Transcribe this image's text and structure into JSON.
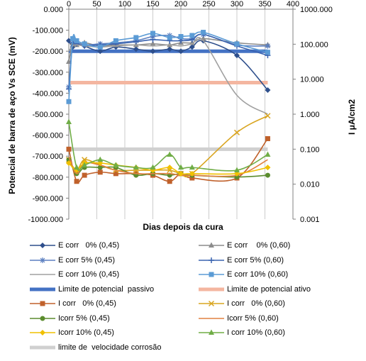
{
  "chart_data": {
    "type": "line",
    "xlabel": "Dias depois da cura",
    "ylabel_left": "Potencial de barra de aço Vs SCE (mV)",
    "ylabel_right": "I μA/cm2",
    "xlim": [
      0,
      400
    ],
    "ylim_left": [
      -1000,
      0
    ],
    "ylim_right_log": [
      0.001,
      1000
    ],
    "grid": "vertical gridlines",
    "legend_position": "bottom",
    "x_ticks": [
      "0",
      "50",
      "100",
      "150",
      "200",
      "250",
      "300",
      "350",
      "400"
    ],
    "y_ticks_left": [
      "0.000",
      "-100.000",
      "-200.000",
      "-300.000",
      "-400.000",
      "-500.000",
      "-600.000",
      "-700.000",
      "-800.000",
      "-900.000",
      "-1000.000"
    ],
    "y_ticks_right": [
      "1000.000",
      "100.000",
      "10.000",
      "1.000",
      "0.100",
      "0.010",
      "0.001"
    ],
    "series": [
      {
        "name": "E corr   0% (0,45)",
        "axis": "left",
        "color": "#2e4f8c",
        "marker": "diamond",
        "x": [
          0,
          7,
          14,
          28,
          56,
          84,
          120,
          150,
          180,
          200,
          220,
          240,
          300,
          355
        ],
        "y": [
          -150,
          -180,
          -160,
          -175,
          -200,
          -180,
          -190,
          -200,
          -190,
          -200,
          -180,
          -150,
          -220,
          -385
        ]
      },
      {
        "name": "E corr    0% (0,60)",
        "axis": "left",
        "color": "#8c8c8c",
        "marker": "triangle",
        "x": [
          0,
          7,
          14,
          28,
          56,
          84,
          120,
          150,
          180,
          200,
          220,
          240,
          300,
          355
        ],
        "y": [
          -250,
          -160,
          -170,
          -160,
          -175,
          -170,
          -170,
          -165,
          -170,
          -160,
          -160,
          -140,
          -160,
          -170
        ]
      },
      {
        "name": "E corr 5% (0,45)",
        "axis": "left",
        "color": "#5b7fc0",
        "marker": "asterisk",
        "x": [
          0,
          7,
          14,
          28,
          56,
          84,
          120,
          150,
          180,
          200,
          220,
          240,
          300,
          355
        ],
        "y": [
          -370,
          -150,
          -160,
          -170,
          -165,
          -160,
          -150,
          -130,
          -125,
          -140,
          -140,
          -120,
          -170,
          -175
        ]
      },
      {
        "name": "E corr 5% (0,60)",
        "axis": "left",
        "color": "#3a63b0",
        "marker": "plus",
        "x": [
          0,
          7,
          14,
          28,
          56,
          84,
          120,
          150,
          180,
          200,
          220,
          240,
          300,
          355
        ],
        "y": [
          -380,
          -160,
          -165,
          -175,
          -170,
          -165,
          -155,
          -145,
          -150,
          -150,
          -145,
          -120,
          -175,
          -220
        ]
      },
      {
        "name": "E corr 10% (0,45)",
        "axis": "left",
        "color": "#a0a0a0",
        "marker": "none",
        "x": [
          0,
          7,
          14,
          28,
          56,
          84,
          120,
          150,
          180,
          200,
          220,
          240,
          300,
          355
        ],
        "y": [
          -200,
          -175,
          -170,
          -175,
          -180,
          -175,
          -170,
          -175,
          -170,
          -175,
          -165,
          -150,
          -410,
          -500
        ]
      },
      {
        "name": "E corr 10% (0,60)",
        "axis": "left",
        "color": "#5b9bd5",
        "marker": "square",
        "x": [
          0,
          7,
          14,
          28,
          56,
          84,
          120,
          150,
          180,
          200,
          220,
          240,
          300,
          355
        ],
        "y": [
          -440,
          -140,
          -150,
          -165,
          -180,
          -150,
          -135,
          -115,
          -135,
          -130,
          -125,
          -110,
          -165,
          -205
        ]
      },
      {
        "name": "I corr   0% (0,45)",
        "axis": "right",
        "color": "#c0612b",
        "marker": "square",
        "x": [
          0,
          14,
          28,
          56,
          84,
          120,
          150,
          180,
          200,
          220,
          300,
          355
        ],
        "y": [
          0.1,
          0.012,
          0.018,
          0.022,
          0.02,
          0.02,
          0.018,
          0.012,
          0.02,
          0.015,
          0.015,
          0.2
        ]
      },
      {
        "name": "I corr   0% (0,60)",
        "axis": "right",
        "color": "#d9a520",
        "marker": "x",
        "x": [
          0,
          14,
          28,
          56,
          84,
          120,
          150,
          180,
          200,
          220,
          300,
          355
        ],
        "y": [
          0.05,
          0.025,
          0.05,
          0.035,
          0.025,
          0.025,
          0.025,
          0.025,
          0.02,
          0.02,
          0.3,
          0.9
        ]
      },
      {
        "name": "Icorr 5% (0,45)",
        "axis": "right",
        "color": "#5b8c2e",
        "marker": "circle",
        "x": [
          0,
          14,
          28,
          56,
          84,
          120,
          150,
          180,
          200,
          220,
          300,
          355
        ],
        "y": [
          0.05,
          0.02,
          0.03,
          0.03,
          0.03,
          0.018,
          0.02,
          0.018,
          0.02,
          0.018,
          0.016,
          0.018
        ]
      },
      {
        "name": "Icorr 5% (0,60)",
        "axis": "right",
        "color": "#e08040",
        "marker": "none",
        "x": [
          0,
          14,
          28,
          56,
          84,
          120,
          150,
          180,
          200,
          220,
          300,
          355
        ],
        "y": [
          0.06,
          0.02,
          0.04,
          0.035,
          0.025,
          0.02,
          0.02,
          0.02,
          0.018,
          0.018,
          0.018,
          0.05
        ]
      },
      {
        "name": "Icorr 10% (0,45)",
        "axis": "right",
        "color": "#f0c000",
        "marker": "diamond",
        "x": [
          0,
          14,
          28,
          56,
          84,
          120,
          150,
          180,
          200,
          220,
          300,
          355
        ],
        "y": [
          0.04,
          0.025,
          0.04,
          0.04,
          0.035,
          0.03,
          0.025,
          0.03,
          0.02,
          0.02,
          0.02,
          0.03
        ]
      },
      {
        "name": "I corr 10% (0,60)",
        "axis": "right",
        "color": "#70ad47",
        "marker": "triangle",
        "x": [
          0,
          14,
          28,
          56,
          84,
          120,
          150,
          180,
          200,
          220,
          300,
          355
        ],
        "y": [
          0.6,
          0.03,
          0.035,
          0.05,
          0.035,
          0.03,
          0.03,
          0.07,
          0.03,
          0.03,
          0.025,
          0.07
        ]
      }
    ],
    "reference_lines": [
      {
        "name": "Limite de potencial  passivo",
        "axis": "left",
        "y": -200,
        "color": "#4472c4"
      },
      {
        "name": "Limite de potencial ativo",
        "axis": "right",
        "y": 8,
        "color": "#f4b6a0"
      },
      {
        "name": "limite de  velocidade corrosão",
        "axis": "right",
        "y": 0.1,
        "color": "#d0d0d0"
      }
    ]
  },
  "legend_rows": [
    [
      "E corr   0% (0,45)",
      "E corr    0% (0,60)"
    ],
    [
      "E corr 5% (0,45)",
      "E corr 5% (0,60)"
    ],
    [
      "E corr 10% (0,45)",
      "E corr 10% (0,60)"
    ],
    [
      "Limite de potencial  passivo",
      "Limite de potencial ativo"
    ],
    [
      "I corr   0% (0,45)",
      "I corr   0% (0,60)"
    ],
    [
      "Icorr 5% (0,45)",
      "Icorr 5% (0,60)"
    ],
    [
      "Icorr 10% (0,45)",
      "I corr 10% (0,60)"
    ],
    [
      "limite de  velocidade corrosão"
    ]
  ]
}
